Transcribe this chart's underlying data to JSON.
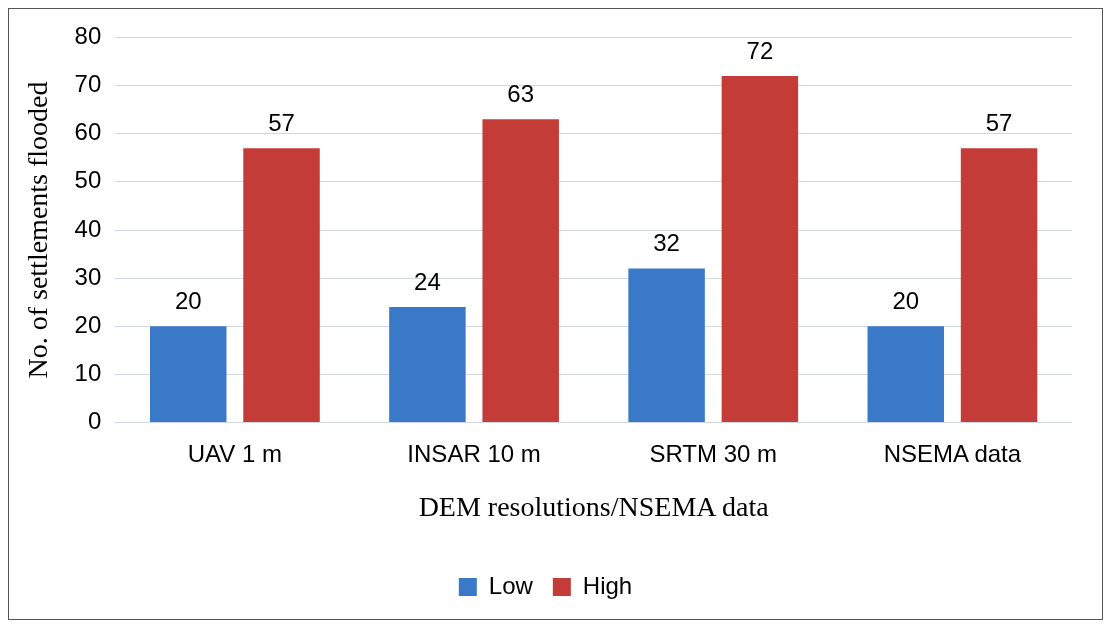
{
  "chart_data": {
    "type": "bar",
    "xlabel": "DEM resolutions/NSEMA data",
    "ylabel": "No. of settlements flooded",
    "categories": [
      "UAV 1 m",
      "INSAR 10 m",
      "SRTM 30 m",
      "NSEMA data"
    ],
    "series": [
      {
        "name": "Low",
        "color": "#3a78c8",
        "values": [
          20,
          24,
          32,
          20
        ]
      },
      {
        "name": "High",
        "color": "#c43c38",
        "values": [
          57,
          63,
          72,
          57
        ]
      }
    ],
    "ylim": [
      0,
      80
    ],
    "yticks": [
      0,
      10,
      20,
      30,
      40,
      50,
      60,
      70,
      80
    ],
    "grid": "y",
    "legend": "bottom",
    "data_labels": true
  }
}
